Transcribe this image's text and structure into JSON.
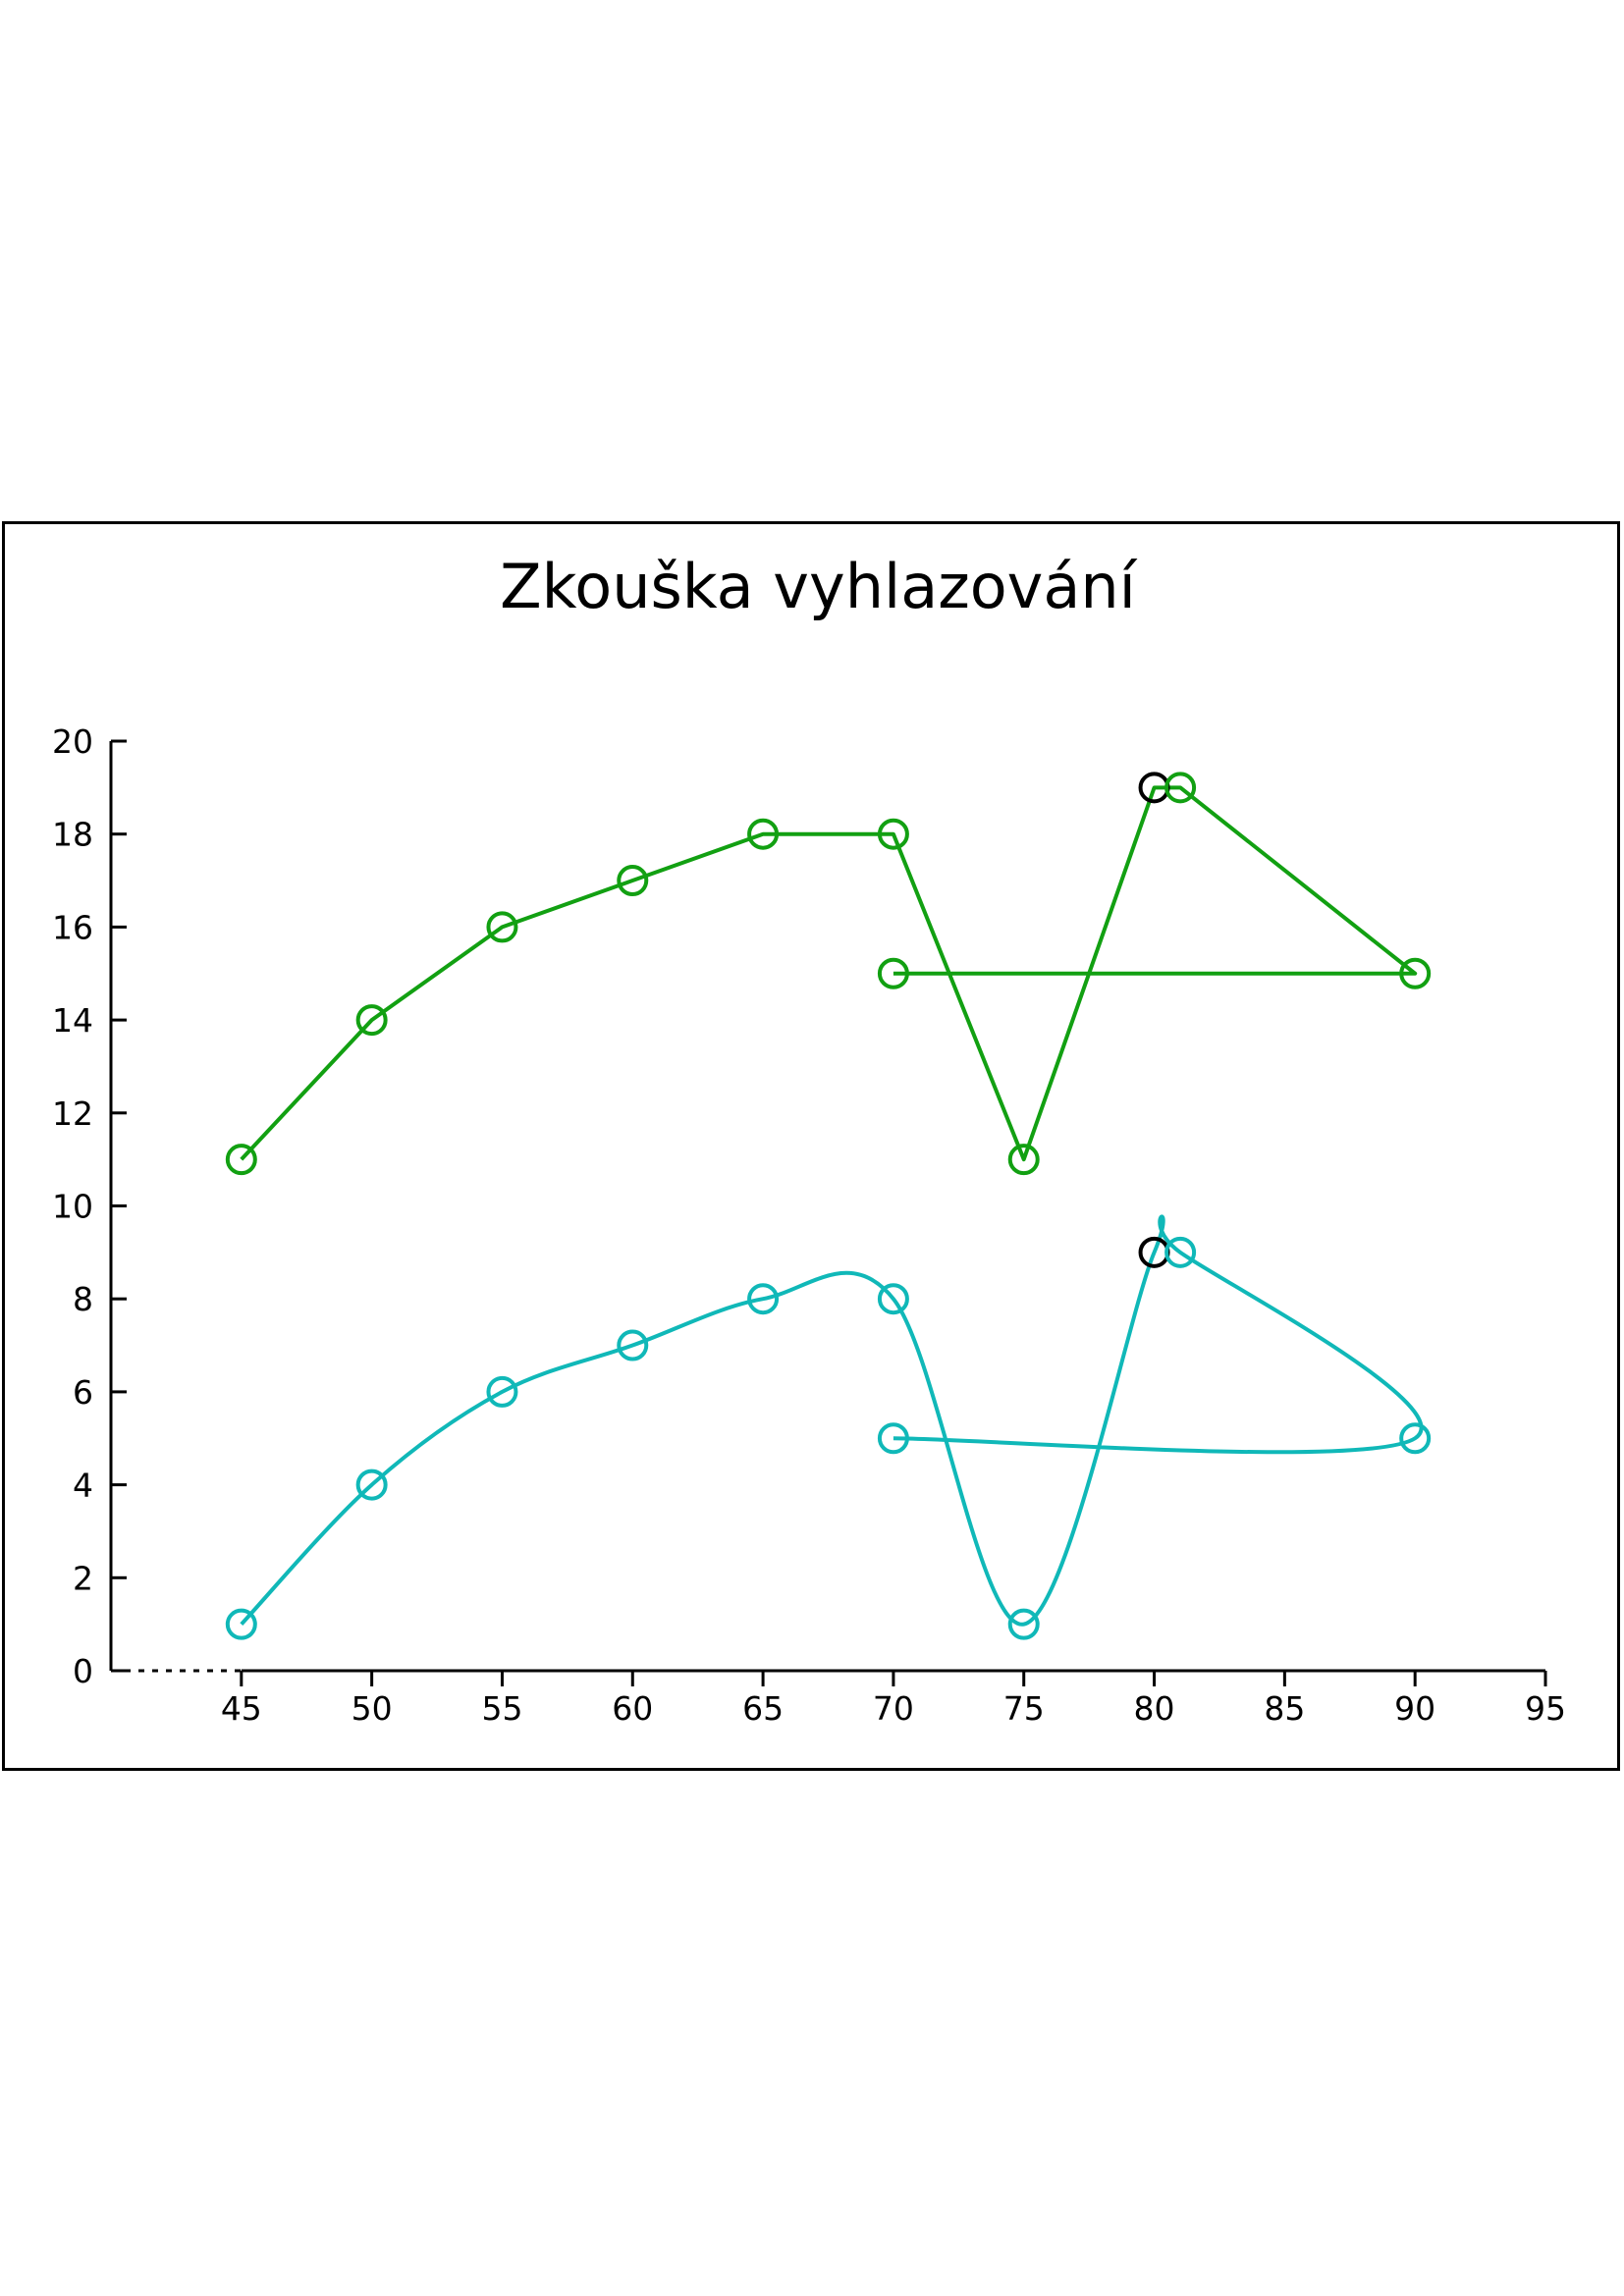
{
  "chart_data": {
    "type": "line",
    "title": "Zkouška vyhlazování",
    "xlabel": "",
    "ylabel": "",
    "xlim": [
      40,
      95
    ],
    "ylim": [
      0,
      20
    ],
    "x_ticks": [
      45,
      50,
      55,
      60,
      65,
      70,
      75,
      80,
      85,
      90,
      95
    ],
    "y_ticks": [
      0,
      2,
      4,
      6,
      8,
      10,
      12,
      14,
      16,
      18,
      20
    ],
    "grid": false,
    "legend": "none",
    "series": [
      {
        "color": "#12a012",
        "style": "straight",
        "points": [
          [
            45,
            11
          ],
          [
            50,
            14
          ],
          [
            55,
            16
          ],
          [
            60,
            17
          ],
          [
            65,
            18
          ],
          [
            70,
            18
          ],
          [
            75,
            11
          ],
          [
            80,
            19
          ],
          [
            81,
            19
          ],
          [
            90,
            15
          ],
          [
            70,
            15
          ]
        ],
        "marker_colors": [
          "#12a012",
          "#12a012",
          "#12a012",
          "#12a012",
          "#12a012",
          "#12a012",
          "#12a012",
          "#000000",
          "#12a012",
          "#12a012",
          "#12a012"
        ]
      },
      {
        "color": "#10b8b8",
        "style": "smooth",
        "points": [
          [
            45,
            1
          ],
          [
            50,
            4
          ],
          [
            55,
            6
          ],
          [
            60,
            7
          ],
          [
            65,
            8
          ],
          [
            70,
            8
          ],
          [
            75,
            1
          ],
          [
            80,
            9
          ],
          [
            81,
            9
          ],
          [
            90,
            5
          ],
          [
            70,
            5
          ]
        ],
        "marker_colors": [
          "#10b8b8",
          "#10b8b8",
          "#10b8b8",
          "#10b8b8",
          "#10b8b8",
          "#10b8b8",
          "#10b8b8",
          "#000000",
          "#10b8b8",
          "#10b8b8",
          "#10b8b8"
        ]
      }
    ]
  }
}
